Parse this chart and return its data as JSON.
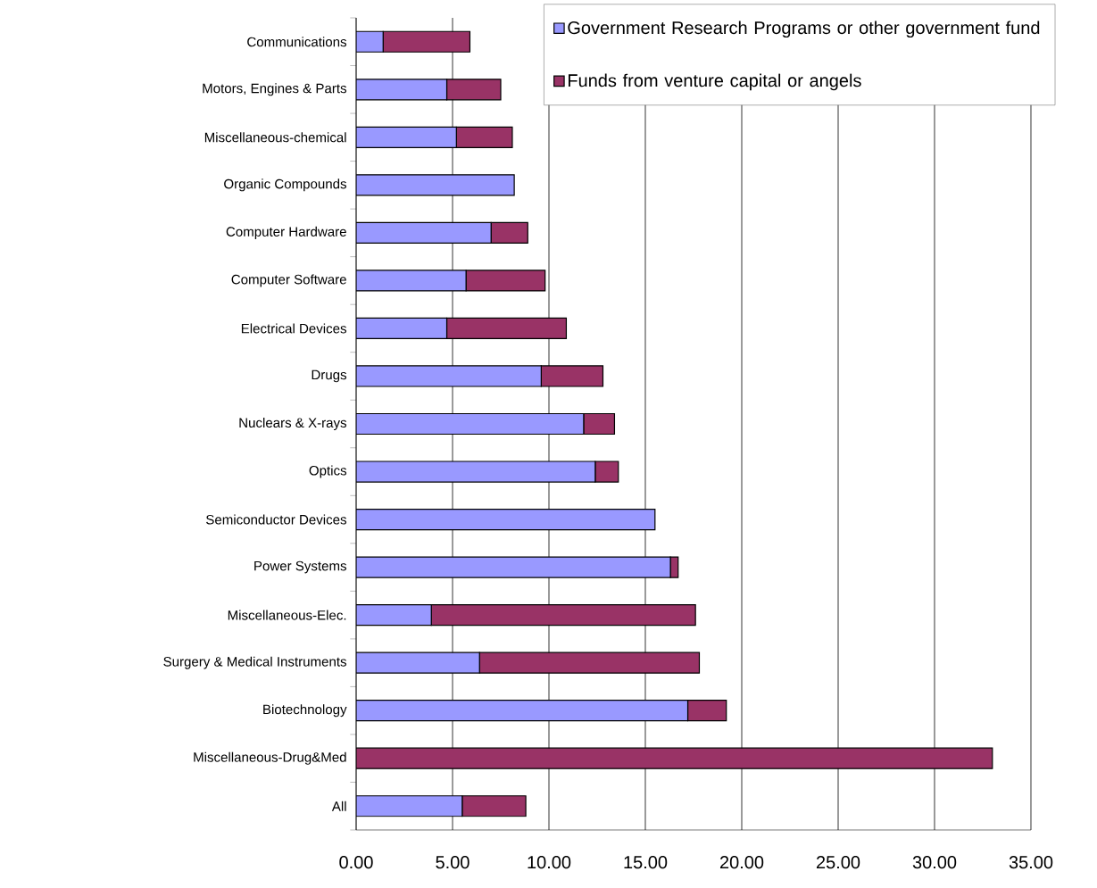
{
  "chart_data": {
    "type": "bar",
    "orientation": "horizontal",
    "stacked": true,
    "categories": [
      "Communications",
      "Motors, Engines & Parts",
      "Miscellaneous-chemical",
      "Organic Compounds",
      "Computer Hardware",
      "Computer Software",
      "Electrical Devices",
      "Drugs",
      "Nuclears & X-rays",
      "Optics",
      "Semiconductor Devices",
      "Power Systems",
      "Miscellaneous-Elec.",
      "Surgery & Medical Instruments",
      "Biotechnology",
      "Miscellaneous-Drug&Med",
      "All"
    ],
    "series": [
      {
        "name": "Government Research Programs or other government fund",
        "color": "#9999ff",
        "values": [
          1.4,
          4.7,
          5.2,
          8.2,
          7.0,
          5.7,
          4.7,
          9.6,
          11.8,
          12.4,
          15.5,
          16.3,
          3.9,
          6.4,
          17.2,
          0,
          5.5
        ]
      },
      {
        "name": "Funds from venture capital or angels",
        "color": "#993366",
        "values": [
          4.5,
          2.8,
          2.9,
          0,
          1.9,
          4.1,
          6.2,
          3.2,
          1.6,
          1.2,
          0,
          0.4,
          13.7,
          11.4,
          2.0,
          33.0,
          3.3
        ]
      }
    ],
    "xlim": [
      0,
      35
    ],
    "xticks": [
      {
        "value": 0,
        "label": "0.00"
      },
      {
        "value": 5,
        "label": "5.00"
      },
      {
        "value": 10,
        "label": "10.00"
      },
      {
        "value": 15,
        "label": "15.00"
      },
      {
        "value": 20,
        "label": "20.00"
      },
      {
        "value": 25,
        "label": "25.00"
      },
      {
        "value": 30,
        "label": "30.00"
      },
      {
        "value": 35,
        "label": "35.00"
      }
    ],
    "grid": "x",
    "legend": "top right"
  }
}
